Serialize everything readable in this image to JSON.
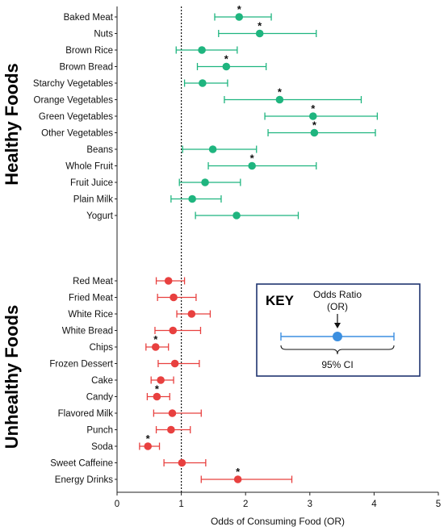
{
  "chart_data": {
    "type": "forest",
    "xlabel": "Odds of Consuming Food (OR)",
    "xlim": [
      0,
      5
    ],
    "x_ticks": [
      0,
      1,
      2,
      3,
      4,
      5
    ],
    "reference_line": 1,
    "groups": [
      {
        "name": "Healthy Foods",
        "color": "#1fb57f",
        "items": [
          {
            "label": "Baked Meat",
            "or": 1.9,
            "lo": 1.52,
            "hi": 2.4,
            "sig": true
          },
          {
            "label": "Nuts",
            "or": 2.22,
            "lo": 1.58,
            "hi": 3.1,
            "sig": true
          },
          {
            "label": "Brown Rice",
            "or": 1.32,
            "lo": 0.92,
            "hi": 1.87,
            "sig": false
          },
          {
            "label": "Brown Bread",
            "or": 1.7,
            "lo": 1.25,
            "hi": 2.32,
            "sig": true
          },
          {
            "label": "Starchy Vegetables",
            "or": 1.33,
            "lo": 1.05,
            "hi": 1.72,
            "sig": false
          },
          {
            "label": "Orange Vegetables",
            "or": 2.53,
            "lo": 1.67,
            "hi": 3.8,
            "sig": true
          },
          {
            "label": "Green Vegetables",
            "or": 3.05,
            "lo": 2.3,
            "hi": 4.05,
            "sig": true
          },
          {
            "label": "Other Vegetables",
            "or": 3.07,
            "lo": 2.35,
            "hi": 4.02,
            "sig": true
          },
          {
            "label": "Beans",
            "or": 1.49,
            "lo": 1.02,
            "hi": 2.17,
            "sig": false
          },
          {
            "label": "Whole Fruit",
            "or": 2.1,
            "lo": 1.42,
            "hi": 3.1,
            "sig": true
          },
          {
            "label": "Fruit Juice",
            "or": 1.37,
            "lo": 0.97,
            "hi": 1.92,
            "sig": false
          },
          {
            "label": "Plain Milk",
            "or": 1.17,
            "lo": 0.84,
            "hi": 1.62,
            "sig": false
          },
          {
            "label": "Yogurt",
            "or": 1.86,
            "lo": 1.22,
            "hi": 2.82,
            "sig": false
          }
        ]
      },
      {
        "name": "Unhealthy Foods",
        "color": "#e8403f",
        "items": [
          {
            "label": "Red Meat",
            "or": 0.8,
            "lo": 0.61,
            "hi": 1.05,
            "sig": false
          },
          {
            "label": "Fried Meat",
            "or": 0.88,
            "lo": 0.63,
            "hi": 1.23,
            "sig": false
          },
          {
            "label": "White Rice",
            "or": 1.16,
            "lo": 0.93,
            "hi": 1.45,
            "sig": false
          },
          {
            "label": "White Bread",
            "or": 0.87,
            "lo": 0.59,
            "hi": 1.3,
            "sig": false
          },
          {
            "label": "Chips",
            "or": 0.6,
            "lo": 0.45,
            "hi": 0.8,
            "sig": true
          },
          {
            "label": "Frozen Dessert",
            "or": 0.9,
            "lo": 0.64,
            "hi": 1.28,
            "sig": false
          },
          {
            "label": "Cake",
            "or": 0.68,
            "lo": 0.53,
            "hi": 0.88,
            "sig": false
          },
          {
            "label": "Candy",
            "or": 0.62,
            "lo": 0.47,
            "hi": 0.82,
            "sig": true
          },
          {
            "label": "Flavored Milk",
            "or": 0.86,
            "lo": 0.57,
            "hi": 1.31,
            "sig": false
          },
          {
            "label": "Punch",
            "or": 0.84,
            "lo": 0.61,
            "hi": 1.14,
            "sig": false
          },
          {
            "label": "Soda",
            "or": 0.48,
            "lo": 0.35,
            "hi": 0.66,
            "sig": true
          },
          {
            "label": "Sweet Caffeine",
            "or": 1.01,
            "lo": 0.73,
            "hi": 1.38,
            "sig": false
          },
          {
            "label": "Energy Drinks",
            "or": 1.88,
            "lo": 1.31,
            "hi": 2.72,
            "sig": true
          }
        ]
      }
    ],
    "significance_marker": "*",
    "key": {
      "title": "KEY",
      "point_label_line1": "Odds Ratio",
      "point_label_line2": "(OR)",
      "ci_label": "95% CI",
      "color": "#3b8fe0"
    }
  }
}
